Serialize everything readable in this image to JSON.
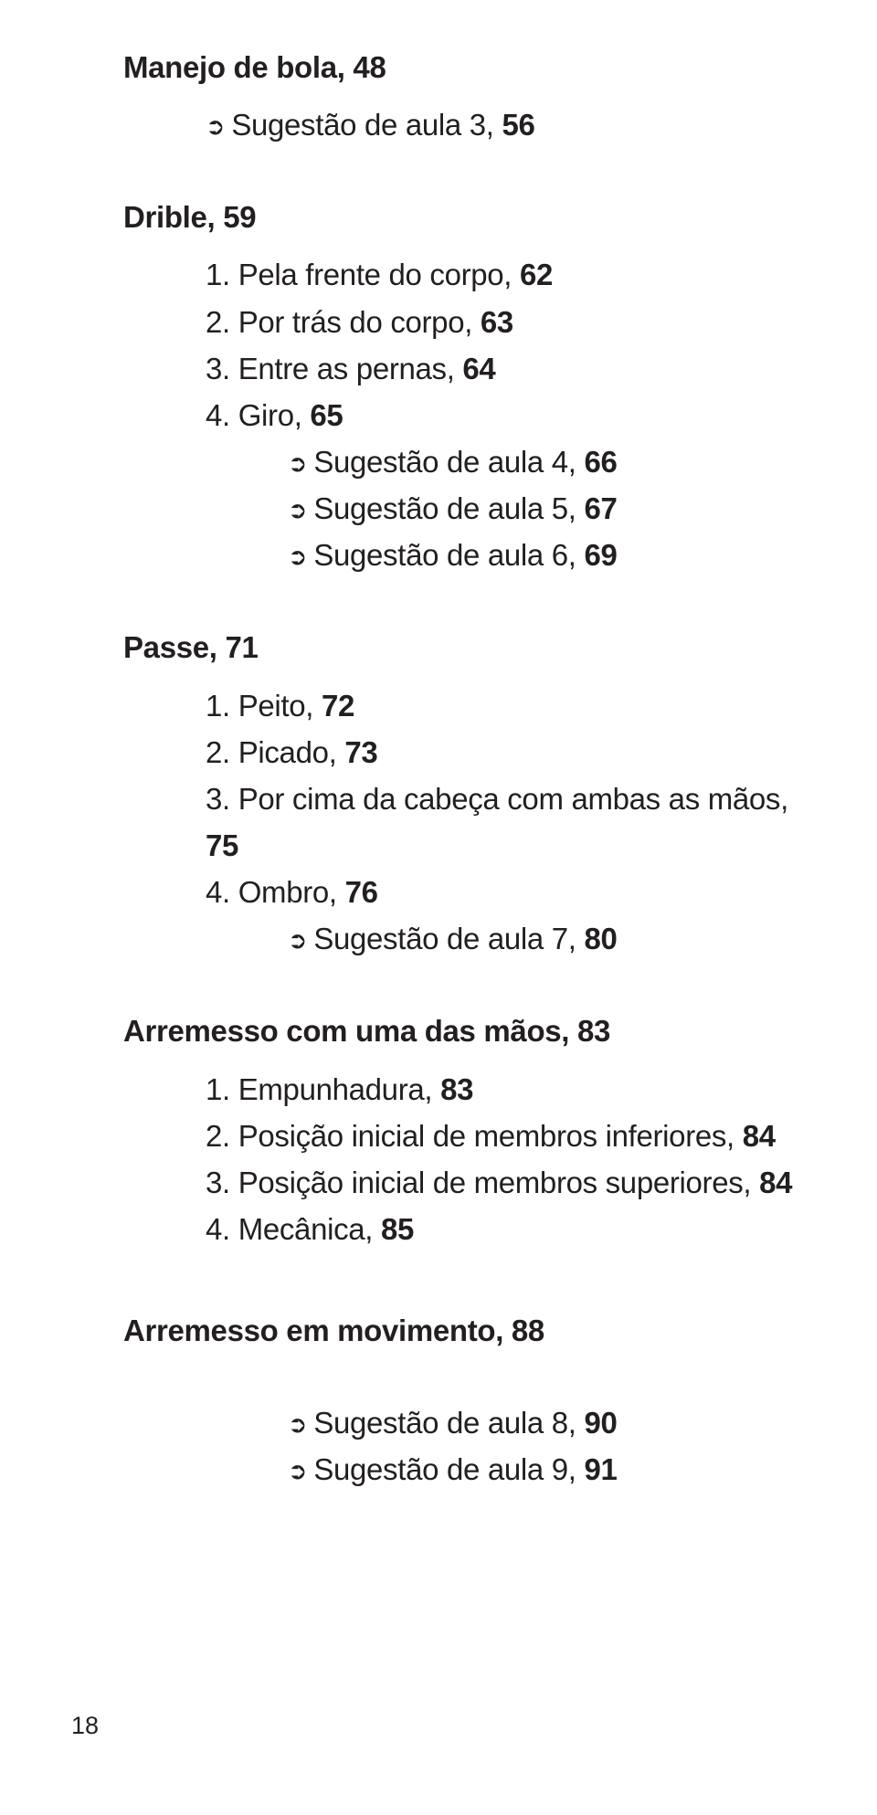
{
  "sec1": {
    "title": "Manejo de bola, ",
    "page": "48",
    "bullets": [
      {
        "arrow": "➲",
        "txt": "Sugestão de aula 3, ",
        "pg": "56"
      }
    ]
  },
  "sec2": {
    "title": "Drible, ",
    "page": "59",
    "items": [
      {
        "n": "1. ",
        "txt": "Pela frente do corpo, ",
        "pg": "62"
      },
      {
        "n": "2. ",
        "txt": "Por trás do corpo, ",
        "pg": "63"
      },
      {
        "n": "3. ",
        "txt": "Entre as pernas, ",
        "pg": "64"
      },
      {
        "n": "4. ",
        "txt": "Giro, ",
        "pg": "65"
      }
    ],
    "bullets": [
      {
        "arrow": "➲",
        "txt": "Sugestão de aula 4, ",
        "pg": "66"
      },
      {
        "arrow": "➲",
        "txt": "Sugestão de aula 5, ",
        "pg": "67"
      },
      {
        "arrow": "➲",
        "txt": "Sugestão de aula 6, ",
        "pg": "69"
      }
    ]
  },
  "sec3": {
    "title": "Passe, ",
    "page": "71",
    "items": [
      {
        "n": "1. ",
        "txt": "Peito, ",
        "pg": "72"
      },
      {
        "n": "2. ",
        "txt": "Picado, ",
        "pg": "73"
      },
      {
        "n": "3. ",
        "txt": "Por cima da cabeça com ambas as mãos, ",
        "pg": "75"
      },
      {
        "n": "4. ",
        "txt": "Ombro, ",
        "pg": "76"
      }
    ],
    "bullets": [
      {
        "arrow": "➲",
        "txt": "Sugestão de aula 7, ",
        "pg": "80"
      }
    ]
  },
  "sec4": {
    "title": "Arremesso com uma das mãos, ",
    "page": "83",
    "items": [
      {
        "n": "1. ",
        "txt": "Empunhadura, ",
        "pg": "83"
      },
      {
        "n": "2. ",
        "txt": "Posição inicial de membros inferiores, ",
        "pg": "84"
      },
      {
        "n": "3. ",
        "txt": "Posição inicial de membros superiores, ",
        "pg": "84"
      },
      {
        "n": "4. ",
        "txt": "Mecânica, ",
        "pg": "85"
      }
    ]
  },
  "sec5": {
    "title": "Arremesso em movimento, ",
    "page": "88",
    "bullets": [
      {
        "arrow": "➲",
        "txt": "Sugestão de aula 8, ",
        "pg": "90"
      },
      {
        "arrow": "➲",
        "txt": "Sugestão de aula 9, ",
        "pg": "91"
      }
    ]
  },
  "page_number": "18"
}
